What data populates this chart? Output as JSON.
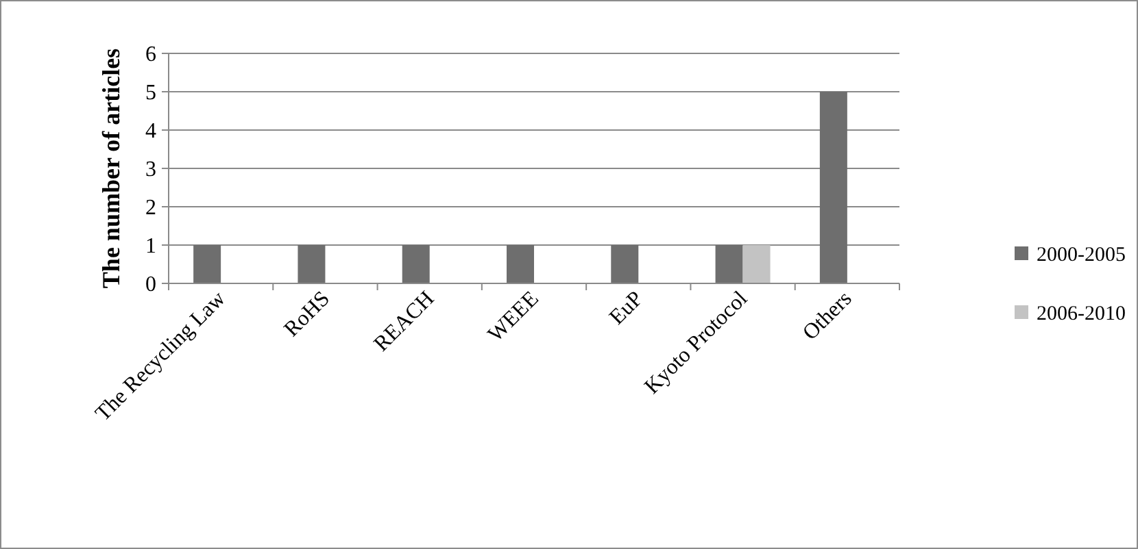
{
  "chart_data": {
    "type": "bar",
    "ylabel": "The number of articles",
    "categories": [
      "The Recycling Law",
      "RoHS",
      "REACH",
      "WEEE",
      "EuP",
      "Kyoto Protocol",
      "Others"
    ],
    "series": [
      {
        "name": "2000-2005",
        "color": "#6e6e6e",
        "values": [
          1,
          1,
          1,
          1,
          1,
          1,
          5
        ]
      },
      {
        "name": "2006-2010",
        "color": "#c3c3c3",
        "values": [
          0,
          0,
          0,
          0,
          0,
          1,
          0
        ]
      }
    ],
    "ylim": [
      0,
      6
    ],
    "yticks": [
      0,
      1,
      2,
      3,
      4,
      5,
      6
    ],
    "grid": "y",
    "legend": "right"
  }
}
